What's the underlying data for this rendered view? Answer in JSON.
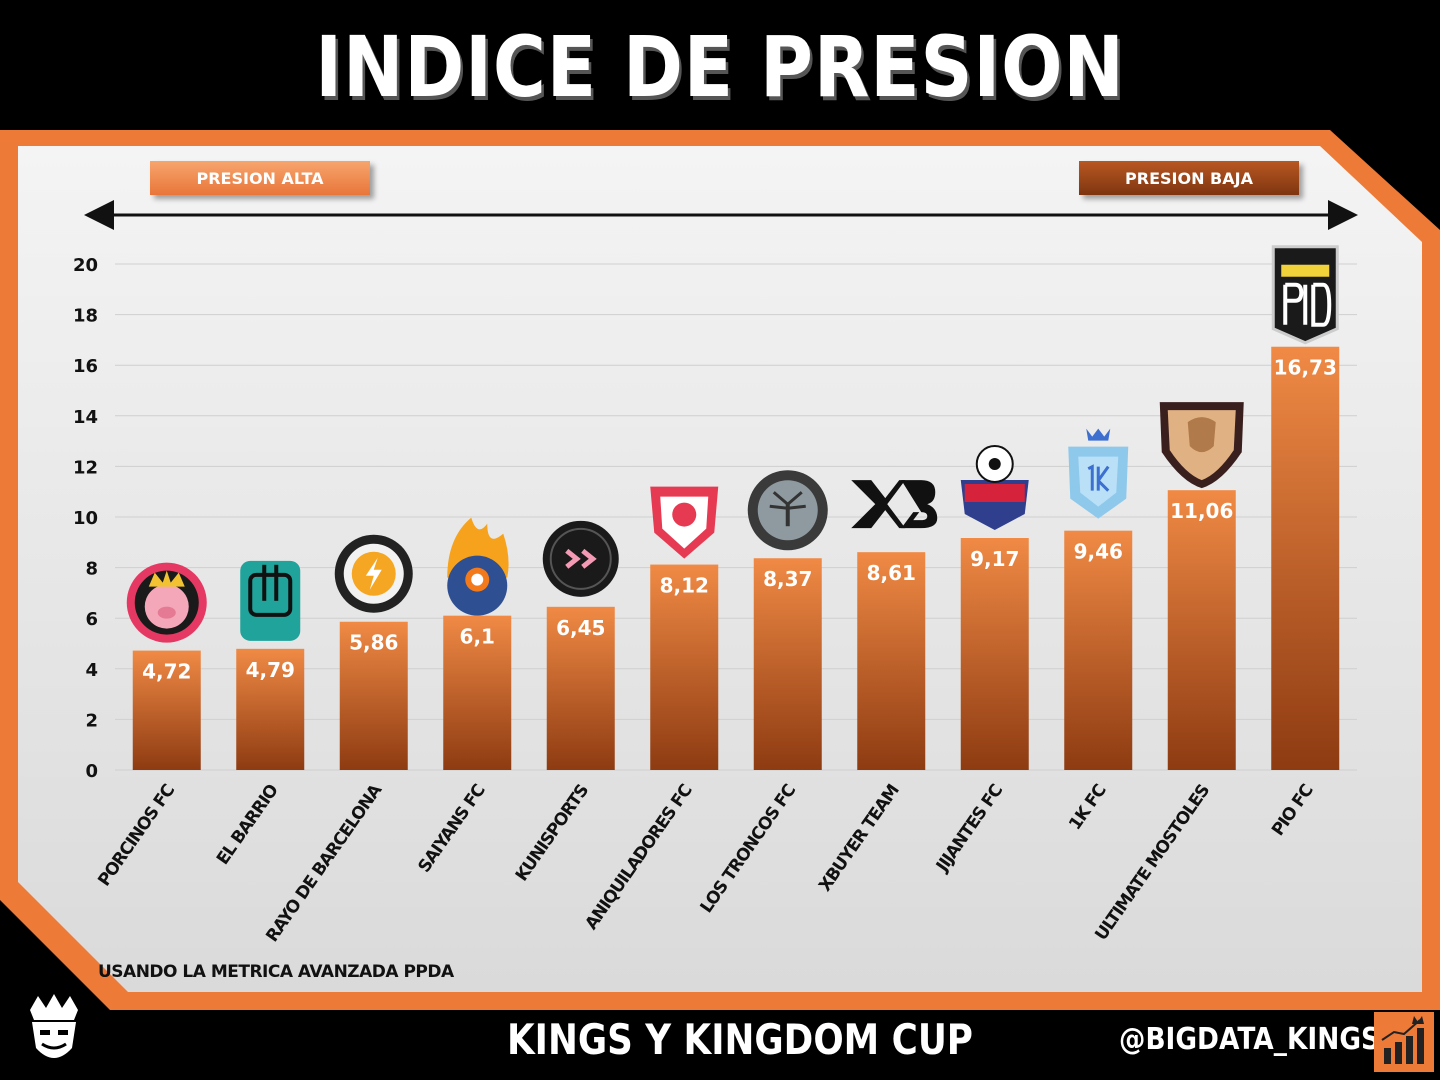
{
  "title": "INDICE DE PRESION",
  "pills": {
    "left": "PRESION ALTA",
    "right": "PRESION BAJA"
  },
  "footnote": "USANDO LA METRICA AVANZADA PPDA",
  "footer": {
    "title": "KINGS Y KINGDOM CUP",
    "handle": "@BIGDATA_KINGS"
  },
  "colors": {
    "bar_top": "#f08a45",
    "bar_bottom": "#8e3b12",
    "frame_orange": "#ee7a37",
    "panel": "#f2f2f2"
  },
  "chart_data": {
    "type": "bar",
    "categories": [
      "PORCINOS FC",
      "EL BARRIO",
      "RAYO DE BARCELONA",
      "SAIYANS FC",
      "KUNISPORTS",
      "ANIQUILADORES FC",
      "LOS TRONCOS FC",
      "XBUYER TEAM",
      "JIJANTES FC",
      "1K FC",
      "ULTIMATE MOSTOLES",
      "PIO FC"
    ],
    "values": [
      4.72,
      4.79,
      5.86,
      6.1,
      6.45,
      8.12,
      8.37,
      8.61,
      9.17,
      9.46,
      11.06,
      16.73
    ],
    "value_labels": [
      "4,72",
      "4,79",
      "5,86",
      "6,1",
      "6,45",
      "8,12",
      "8,37",
      "8,61",
      "9,17",
      "9,46",
      "11,06",
      "16,73"
    ],
    "yticks": [
      0,
      2,
      4,
      6,
      8,
      10,
      12,
      14,
      16,
      18,
      20
    ],
    "ylim": [
      0,
      20
    ],
    "xlabel": "",
    "ylabel": "",
    "grid": true,
    "team_logo_icons": [
      "pig-crown-icon",
      "hand-fingers-icon",
      "lightning-badge-icon",
      "flame-ball-icon",
      "k-monogram-icon",
      "red-crest-icon",
      "tree-badge-icon",
      "xb-monogram-icon",
      "soccer-ball-crest-icon",
      "crown-1k-icon",
      "lion-shield-icon",
      "pio-shield-icon"
    ]
  }
}
